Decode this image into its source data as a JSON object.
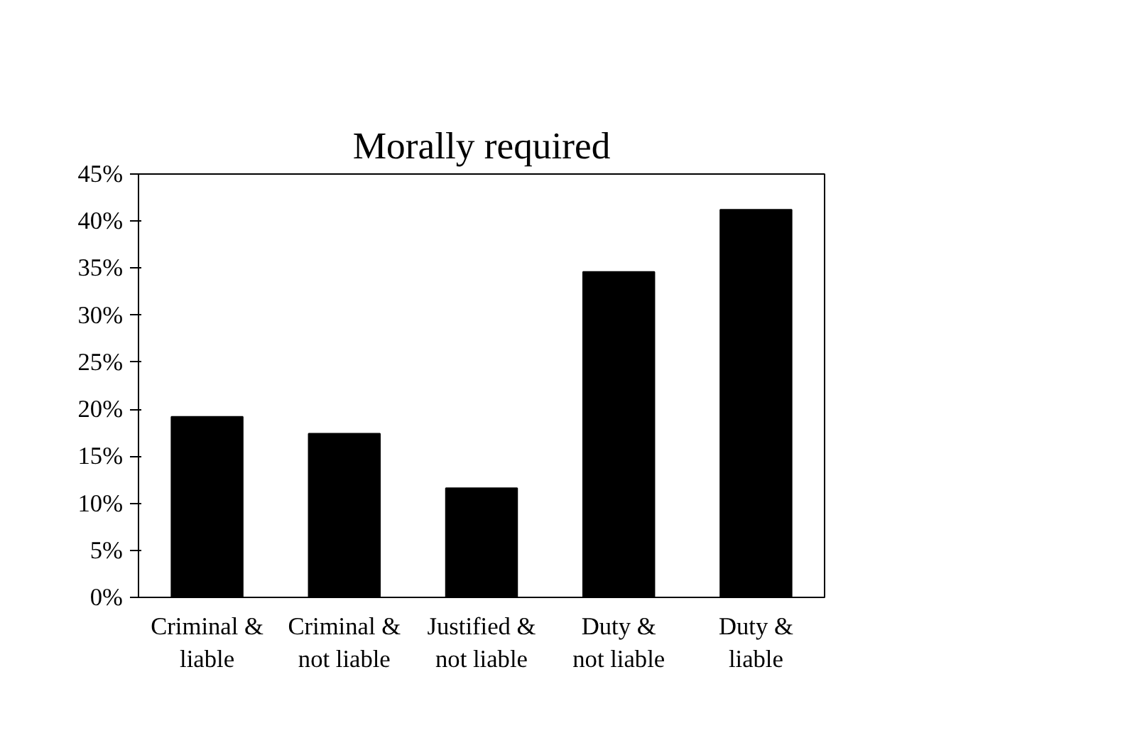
{
  "chart_data": {
    "type": "bar",
    "title": "Morally required",
    "categories": [
      "Criminal &\nliable",
      "Criminal &\nnot liable",
      "Justified &\nnot liable",
      "Duty &\nnot liable",
      "Duty &\nliable"
    ],
    "values": [
      19.2,
      17.4,
      11.6,
      34.6,
      41.2
    ],
    "color": "#000000",
    "ylim": [
      0,
      45
    ],
    "yticks": [
      {
        "value": 0,
        "label": "0%"
      },
      {
        "value": 5,
        "label": "5%"
      },
      {
        "value": 10,
        "label": "10%"
      },
      {
        "value": 15,
        "label": "15%"
      },
      {
        "value": 20,
        "label": "20%"
      },
      {
        "value": 25,
        "label": "25%"
      },
      {
        "value": 30,
        "label": "30%"
      },
      {
        "value": 35,
        "label": "35%"
      },
      {
        "value": 40,
        "label": "40%"
      },
      {
        "value": 45,
        "label": "45%"
      }
    ],
    "grid": false
  }
}
